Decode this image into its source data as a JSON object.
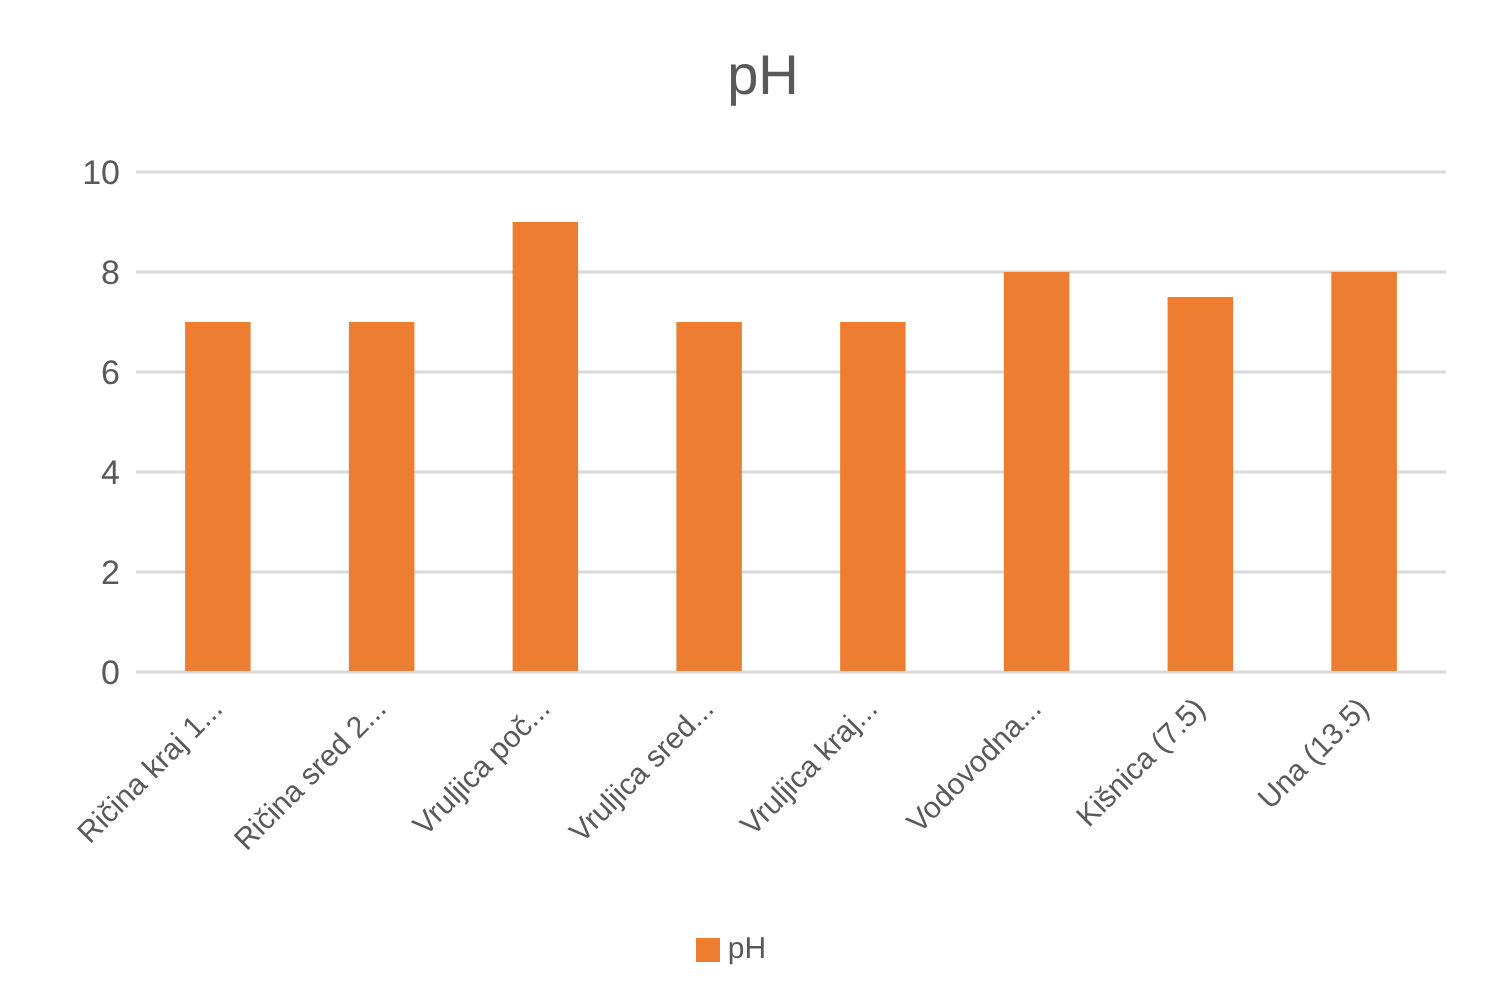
{
  "chart_data": {
    "type": "bar",
    "title": "pH",
    "categories": [
      "Ričina kraj 1...",
      "Ričina sred 2...",
      "Vruljica poč...",
      "Vruljica sred...",
      "Vruljica kraj...",
      "Vodovodna...",
      "Kišnica (7.5)",
      "Una  (13.5)"
    ],
    "series": [
      {
        "name": "pH",
        "color": "#ed7d31",
        "values": [
          7,
          7,
          9,
          7,
          7,
          8,
          7.5,
          8
        ]
      }
    ],
    "ylim": [
      0,
      10
    ],
    "yticks": [
      0,
      2,
      4,
      6,
      8,
      10
    ],
    "grid": "y",
    "legend": "bottom"
  }
}
